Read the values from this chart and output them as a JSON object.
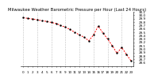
{
  "title": "Milwaukee Weather Barometric Pressure per Hour (Last 24 Hours)",
  "hours": [
    0,
    1,
    2,
    3,
    4,
    5,
    6,
    7,
    8,
    9,
    10,
    11,
    12,
    13,
    14,
    15,
    16,
    17,
    18,
    19,
    20,
    21,
    22,
    23
  ],
  "pressure": [
    29.93,
    29.91,
    29.89,
    29.87,
    29.84,
    29.82,
    29.79,
    29.76,
    29.7,
    29.65,
    29.58,
    29.5,
    29.42,
    29.35,
    29.25,
    29.42,
    29.68,
    29.48,
    29.3,
    29.1,
    28.88,
    29.05,
    28.85,
    28.65
  ],
  "line_color": "#ff0000",
  "marker_color": "#000000",
  "bg_color": "#ffffff",
  "grid_color": "#888888",
  "title_color": "#000000",
  "ylim_min": 28.5,
  "ylim_max": 30.1,
  "ytick_values": [
    28.6,
    28.7,
    28.8,
    28.9,
    29.0,
    29.1,
    29.2,
    29.3,
    29.4,
    29.5,
    29.6,
    29.7,
    29.8,
    29.9,
    30.0,
    30.1
  ],
  "title_fontsize": 3.8,
  "tick_fontsize": 3.0,
  "xlabel_labels": [
    "0",
    "1",
    "2",
    "3",
    "4",
    "5",
    "6",
    "7",
    "8",
    "9",
    "10",
    "11",
    "12",
    "13",
    "14",
    "15",
    "16",
    "17",
    "18",
    "19",
    "20",
    "21",
    "22",
    "23"
  ],
  "vgrid_positions": [
    0,
    3,
    6,
    9,
    12,
    15,
    18,
    21
  ]
}
